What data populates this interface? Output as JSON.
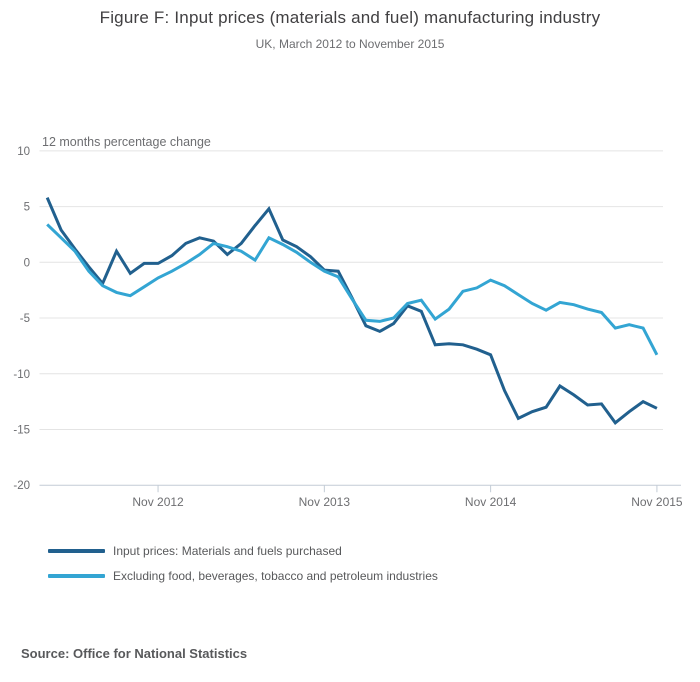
{
  "figure": {
    "title": "Figure F: Input prices (materials and fuel) manufacturing industry",
    "subtitle": "UK, March 2012 to November 2015",
    "source": "Source: Office for National Statistics"
  },
  "chart_data": {
    "type": "line",
    "title": "Figure F: Input prices (materials and fuel) manufacturing industry",
    "subtitle": "UK, March 2012 to November 2015",
    "ylabel": "12 months percentage change",
    "xlabel": "",
    "ylim": [
      -20,
      10
    ],
    "y_ticks": [
      10,
      5,
      0,
      -5,
      -10,
      -15,
      -20
    ],
    "grid": "horizontal",
    "legend_position": "bottom-left",
    "x_interval": "monthly",
    "x": [
      "Mar 2012",
      "Apr 2012",
      "May 2012",
      "Jun 2012",
      "Jul 2012",
      "Aug 2012",
      "Sep 2012",
      "Oct 2012",
      "Nov 2012",
      "Dec 2012",
      "Jan 2013",
      "Feb 2013",
      "Mar 2013",
      "Apr 2013",
      "May 2013",
      "Jun 2013",
      "Jul 2013",
      "Aug 2013",
      "Sep 2013",
      "Oct 2013",
      "Nov 2013",
      "Dec 2013",
      "Jan 2014",
      "Feb 2014",
      "Mar 2014",
      "Apr 2014",
      "May 2014",
      "Jun 2014",
      "Jul 2014",
      "Aug 2014",
      "Sep 2014",
      "Oct 2014",
      "Nov 2014",
      "Dec 2014",
      "Jan 2015",
      "Feb 2015",
      "Mar 2015",
      "Apr 2015",
      "May 2015",
      "Jun 2015",
      "Jul 2015",
      "Aug 2015",
      "Sep 2015",
      "Oct 2015",
      "Nov 2015"
    ],
    "x_tick_labels": [
      "Nov 2012",
      "Nov 2013",
      "Nov 2014",
      "Nov 2015"
    ],
    "x_tick_indices": [
      8,
      20,
      32,
      44
    ],
    "series": [
      {
        "name": "Input prices: Materials and fuels purchased",
        "color": "#21608e",
        "values": [
          5.8,
          2.9,
          1.2,
          -0.4,
          -1.9,
          1.0,
          -1.0,
          -0.1,
          -0.1,
          0.6,
          1.7,
          2.2,
          1.9,
          0.7,
          1.7,
          3.3,
          4.8,
          2.0,
          1.4,
          0.5,
          -0.7,
          -0.8,
          -3.2,
          -5.7,
          -6.2,
          -5.5,
          -3.9,
          -4.4,
          -7.4,
          -7.3,
          -7.4,
          -7.8,
          -8.3,
          -11.5,
          -14.0,
          -13.4,
          -13.0,
          -11.1,
          -11.9,
          -12.8,
          -12.7,
          -14.4,
          -13.4,
          -12.5,
          -13.1
        ]
      },
      {
        "name": "Excluding food, beverages, tobacco and petroleum industries",
        "color": "#33a5d3",
        "values": [
          3.4,
          2.2,
          1.0,
          -0.8,
          -2.1,
          -2.7,
          -3.0,
          -2.2,
          -1.4,
          -0.8,
          -0.1,
          0.7,
          1.7,
          1.4,
          1.0,
          0.2,
          2.2,
          1.6,
          0.9,
          0.0,
          -0.8,
          -1.3,
          -3.3,
          -5.2,
          -5.3,
          -5.0,
          -3.7,
          -3.4,
          -5.1,
          -4.2,
          -2.6,
          -2.3,
          -1.6,
          -2.1,
          -2.9,
          -3.7,
          -4.3,
          -3.6,
          -3.8,
          -4.2,
          -4.5,
          -5.9,
          -5.6,
          -5.9,
          -8.3
        ]
      }
    ]
  }
}
